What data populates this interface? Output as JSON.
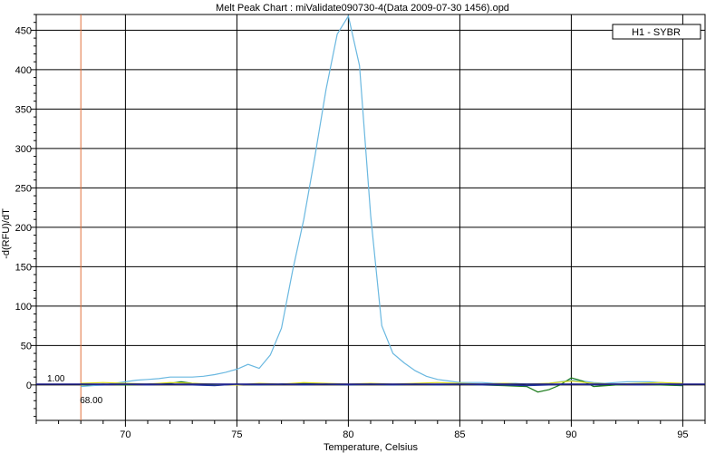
{
  "chart_data": {
    "type": "line",
    "title": "Melt Peak Chart : miValidate090730-4(Data 2009-07-30 1456).opd",
    "xlabel": "Temperature, Celsius",
    "ylabel": "-d(RFU)/dT",
    "xlim": [
      66,
      96
    ],
    "ylim": [
      -45,
      470
    ],
    "x_ticks": [
      70,
      75,
      80,
      85,
      90,
      95
    ],
    "y_ticks": [
      0,
      50,
      100,
      150,
      200,
      250,
      300,
      350,
      400,
      450
    ],
    "grid": true,
    "legend_position": "top-right",
    "legend": [
      "H1 - SYBR"
    ],
    "threshold": {
      "value": 1.0,
      "label": "1.00",
      "color": "#1e1e8c"
    },
    "marker": {
      "x": 68.0,
      "label": "68.00",
      "color": "#e0703a"
    },
    "series": [
      {
        "name": "H1 - SYBR",
        "color": "#6ab8e0",
        "x": [
          68,
          68.5,
          69,
          69.5,
          70,
          70.5,
          71,
          71.5,
          72,
          72.5,
          73,
          73.5,
          74,
          74.5,
          75,
          75.5,
          76,
          76.5,
          77,
          77.5,
          78,
          78.5,
          79,
          79.5,
          80,
          80.5,
          81,
          81.5,
          82,
          82.5,
          83,
          83.5,
          84,
          84.5,
          85,
          85.5,
          86,
          86.5,
          87,
          87.5,
          88,
          88.5,
          89,
          89.5,
          90,
          90.5,
          91,
          91.5,
          92,
          92.5,
          93,
          93.5,
          94,
          94.5,
          95
        ],
        "values": [
          -2,
          -1,
          0,
          2,
          4,
          6,
          7,
          8,
          10,
          10,
          10,
          11,
          13,
          16,
          20,
          26,
          21,
          38,
          72,
          145,
          210,
          290,
          375,
          445,
          468,
          405,
          215,
          75,
          40,
          28,
          18,
          11,
          7,
          5,
          3,
          3,
          3,
          2,
          2,
          2,
          1,
          1,
          2,
          4,
          6,
          5,
          3,
          2,
          3,
          4,
          4,
          4,
          3,
          2,
          1
        ]
      },
      {
        "name": "",
        "color": "#1a7a1a",
        "x": [
          68,
          69,
          70,
          71,
          72,
          72.5,
          73,
          74,
          75,
          76,
          77,
          78,
          79,
          80,
          81,
          82,
          83,
          84,
          85,
          86,
          87,
          88,
          88.5,
          89,
          89.5,
          90,
          90.5,
          91,
          92,
          93,
          94,
          95
        ],
        "values": [
          0,
          1,
          0,
          1,
          2,
          4,
          2,
          0,
          1,
          0,
          1,
          2,
          1,
          0,
          1,
          0,
          1,
          0,
          1,
          0,
          -1,
          -2,
          -9,
          -6,
          0,
          9,
          5,
          -2,
          0,
          1,
          0,
          -1
        ]
      },
      {
        "name": "",
        "color": "#d8d820",
        "x": [
          68,
          69,
          70,
          71,
          72,
          73,
          74,
          75,
          76,
          77,
          78,
          79,
          80,
          81,
          82,
          83,
          84,
          85,
          86,
          87,
          88,
          89,
          90,
          91,
          92,
          93,
          94,
          95
        ],
        "values": [
          2,
          3,
          2,
          1,
          3,
          2,
          1,
          0,
          2,
          1,
          3,
          2,
          1,
          2,
          1,
          2,
          3,
          2,
          1,
          2,
          1,
          2,
          5,
          2,
          1,
          2,
          3,
          2
        ]
      },
      {
        "name": "",
        "color": "#1c2f9a",
        "x": [
          68,
          69,
          70,
          71,
          72,
          73,
          74,
          75,
          76,
          77,
          78,
          79,
          80,
          81,
          82,
          83,
          84,
          85,
          86,
          87,
          88,
          89,
          90,
          91,
          92,
          93,
          94,
          95
        ],
        "values": [
          1,
          0,
          1,
          0,
          1,
          0,
          -1,
          1,
          0,
          1,
          0,
          1,
          0,
          1,
          0,
          1,
          0,
          1,
          0,
          0,
          -1,
          0,
          1,
          0,
          1,
          0,
          1,
          0
        ]
      }
    ]
  }
}
